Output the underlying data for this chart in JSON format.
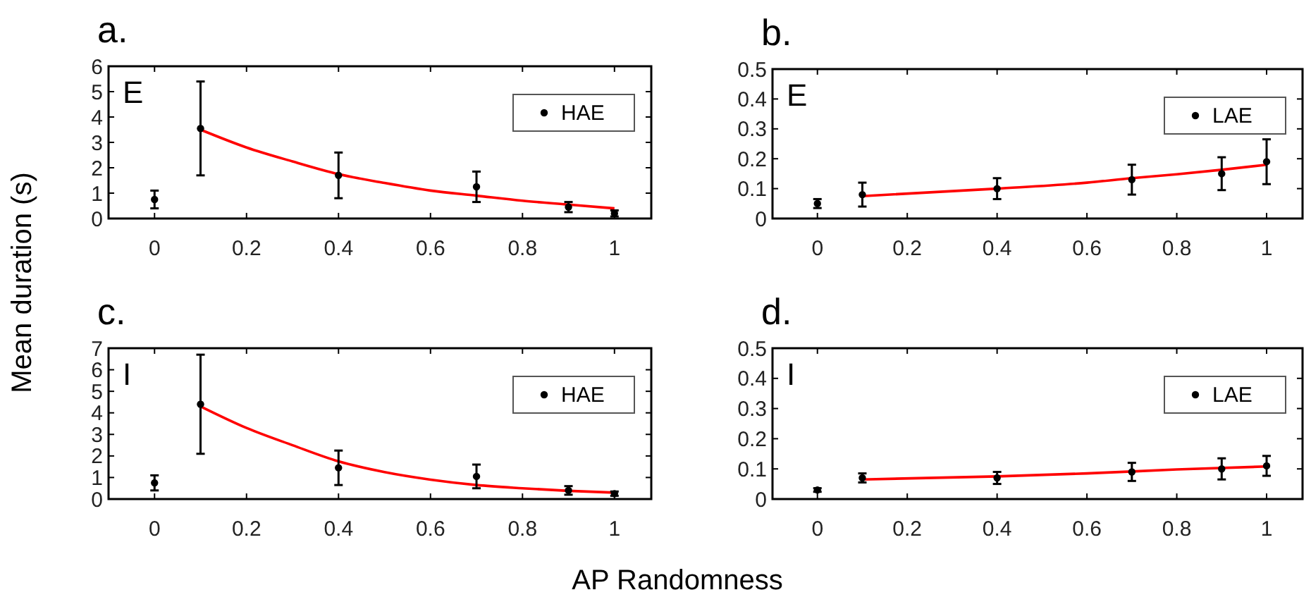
{
  "chart_data": [
    {
      "type": "scatter",
      "title": "a.",
      "ylabel": "Mean duration (s)",
      "annotations": [
        "E"
      ],
      "xlim": [
        -0.1,
        1.08
      ],
      "ylim": [
        0,
        6
      ],
      "xticks": [
        0,
        0.2,
        0.4,
        0.6,
        0.8,
        1
      ],
      "yticks": [
        0,
        1,
        2,
        3,
        4,
        5,
        6
      ],
      "grid": false,
      "legend": "top right",
      "series": [
        {
          "name": "HAE",
          "color": "#000000",
          "marker": "circle",
          "x": [
            0,
            0.1,
            0.4,
            0.7,
            0.9,
            1
          ],
          "values": [
            0.75,
            3.55,
            1.7,
            1.25,
            0.45,
            0.2
          ],
          "errors": [
            0.35,
            1.85,
            0.9,
            0.6,
            0.2,
            0.12
          ]
        },
        {
          "type": "line",
          "color": "#ff0000",
          "marker": "none",
          "x": [
            0.1,
            0.2,
            0.3,
            0.4,
            0.5,
            0.6,
            0.7,
            0.8,
            0.9,
            1
          ],
          "values": [
            3.5,
            2.8,
            2.25,
            1.75,
            1.4,
            1.1,
            0.9,
            0.7,
            0.55,
            0.4
          ]
        }
      ]
    },
    {
      "type": "scatter",
      "title": "b.",
      "annotations": [
        "E"
      ],
      "xlim": [
        -0.1,
        1.08
      ],
      "ylim": [
        0,
        0.5
      ],
      "xticks": [
        0,
        0.2,
        0.4,
        0.6,
        0.8,
        1
      ],
      "yticks": [
        0,
        0.1,
        0.2,
        0.3,
        0.4,
        0.5
      ],
      "grid": false,
      "legend": "top right",
      "series": [
        {
          "name": "LAE",
          "color": "#000000",
          "marker": "circle",
          "x": [
            0,
            0.1,
            0.4,
            0.7,
            0.9,
            1
          ],
          "values": [
            0.05,
            0.08,
            0.1,
            0.13,
            0.15,
            0.19
          ],
          "errors": [
            0.015,
            0.04,
            0.035,
            0.05,
            0.055,
            0.075
          ]
        },
        {
          "type": "line",
          "color": "#ff0000",
          "marker": "none",
          "x": [
            0.1,
            0.4,
            0.6,
            0.7,
            0.8,
            0.9,
            1
          ],
          "values": [
            0.075,
            0.1,
            0.12,
            0.135,
            0.148,
            0.163,
            0.18
          ]
        }
      ]
    },
    {
      "type": "scatter",
      "title": "c.",
      "xlabel": "AP Randomness",
      "annotations": [
        "I"
      ],
      "xlim": [
        -0.1,
        1.08
      ],
      "ylim": [
        0,
        7
      ],
      "xticks": [
        0,
        0.2,
        0.4,
        0.6,
        0.8,
        1
      ],
      "yticks": [
        0,
        1,
        2,
        3,
        4,
        5,
        6,
        7
      ],
      "grid": false,
      "legend": "top right",
      "series": [
        {
          "name": "HAE",
          "color": "#000000",
          "marker": "circle",
          "x": [
            0,
            0.1,
            0.4,
            0.7,
            0.9,
            1
          ],
          "values": [
            0.75,
            4.4,
            1.45,
            1.05,
            0.4,
            0.25
          ],
          "errors": [
            0.35,
            2.3,
            0.8,
            0.55,
            0.2,
            0.1
          ]
        },
        {
          "type": "line",
          "color": "#ff0000",
          "marker": "none",
          "x": [
            0.1,
            0.2,
            0.3,
            0.4,
            0.5,
            0.6,
            0.7,
            0.8,
            0.9,
            1
          ],
          "values": [
            4.3,
            3.3,
            2.5,
            1.75,
            1.25,
            0.9,
            0.65,
            0.5,
            0.38,
            0.3
          ]
        }
      ]
    },
    {
      "type": "scatter",
      "title": "d.",
      "annotations": [
        "I"
      ],
      "xlim": [
        -0.1,
        1.08
      ],
      "ylim": [
        0,
        0.5
      ],
      "xticks": [
        0,
        0.2,
        0.4,
        0.6,
        0.8,
        1
      ],
      "yticks": [
        0,
        0.1,
        0.2,
        0.3,
        0.4,
        0.5
      ],
      "grid": false,
      "legend": "top right",
      "series": [
        {
          "name": "LAE",
          "color": "#000000",
          "marker": "circle",
          "x": [
            0,
            0.1,
            0.4,
            0.7,
            0.9,
            1
          ],
          "values": [
            0.03,
            0.07,
            0.07,
            0.09,
            0.1,
            0.11
          ],
          "errors": [
            0.006,
            0.015,
            0.02,
            0.03,
            0.035,
            0.033
          ]
        },
        {
          "type": "line",
          "color": "#ff0000",
          "marker": "none",
          "x": [
            0.1,
            0.4,
            0.6,
            0.8,
            1
          ],
          "values": [
            0.065,
            0.075,
            0.085,
            0.098,
            0.108
          ]
        }
      ]
    }
  ]
}
